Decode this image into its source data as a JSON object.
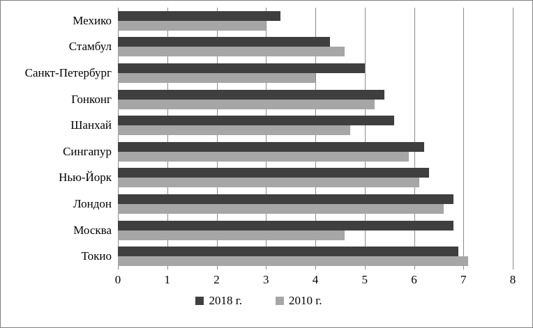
{
  "chart_data": {
    "type": "bar",
    "orientation": "horizontal",
    "title": "",
    "categories": [
      "Мехико",
      "Стамбул",
      "Санкт-Петербург",
      "Гонконг",
      "Шанхай",
      "Сингапур",
      "Нью-Йорк",
      "Лондон",
      "Москва",
      "Токио"
    ],
    "series": [
      {
        "name": "2018 г.",
        "color": "#3f3f3f",
        "values": [
          3.3,
          4.3,
          5.0,
          5.4,
          5.6,
          6.2,
          6.3,
          6.8,
          6.8,
          6.9
        ]
      },
      {
        "name": "2010 г.",
        "color": "#a6a6a6",
        "values": [
          3.0,
          4.6,
          4.0,
          5.2,
          4.7,
          5.9,
          6.1,
          6.6,
          4.6,
          7.1
        ]
      }
    ],
    "xlim": [
      0,
      8
    ],
    "xticks": [
      0,
      1,
      2,
      3,
      4,
      5,
      6,
      7,
      8
    ],
    "xlabel": "",
    "ylabel": "",
    "grid": true,
    "gridline_color": "#8c8c8c",
    "legend_position": "bottom"
  }
}
